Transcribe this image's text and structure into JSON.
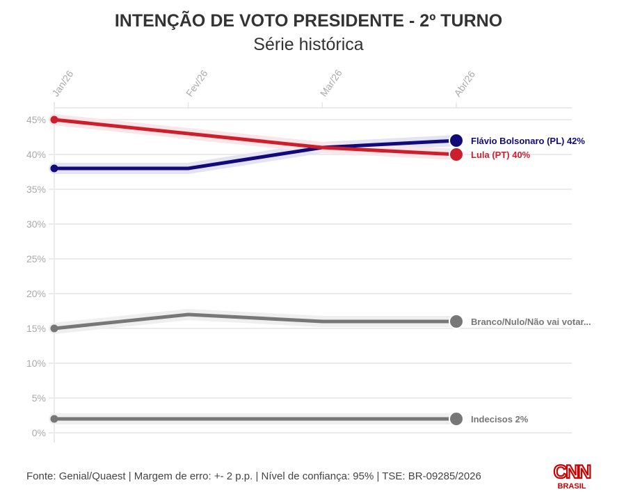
{
  "header": {
    "title": "INTENÇÃO DE VOTO PRESIDENTE - 2º TURNO",
    "subtitle": "Série histórica"
  },
  "footer": {
    "source": "Fonte: Genial/Quaest | Margem de erro: +- 2 p.p. | Nível de confiança: 95% | TSE: BR-09285/2026"
  },
  "logo": {
    "brand": "CNN",
    "sub": "BRASIL",
    "color": "#cc0000"
  },
  "chart_data": {
    "type": "line",
    "title": "INTENÇÃO DE VOTO PRESIDENTE - 2º TURNO",
    "subtitle": "Série histórica",
    "xlabel": "",
    "ylabel": "",
    "categories": [
      "Jan/26",
      "Fev/26",
      "Mar/26",
      "Abr/26"
    ],
    "ylim": [
      0,
      45
    ],
    "yticks": [
      0,
      5,
      10,
      15,
      20,
      25,
      30,
      35,
      40,
      45
    ],
    "ytick_labels": [
      "0%",
      "5%",
      "10%",
      "15%",
      "20%",
      "25%",
      "30%",
      "35%",
      "40%",
      "45%"
    ],
    "grid": true,
    "legend": "direct-labels-right",
    "series": [
      {
        "name": "Flávio Bolsonaro (PL)",
        "label": "Flávio Bolsonaro (PL) 42%",
        "values": [
          38,
          38,
          41,
          42
        ],
        "color": "#130a7a",
        "band": "#e4e3f3"
      },
      {
        "name": "Lula (PT)",
        "label": "Lula (PT) 40%",
        "values": [
          45,
          43,
          41,
          40
        ],
        "color": "#cc1f2e",
        "band": "#fae6e8"
      },
      {
        "name": "Branco/Nulo/Não vai votar",
        "label": "Branco/Nulo/Não vai votar...",
        "values": [
          15,
          17,
          16,
          16
        ],
        "color": "#777777",
        "band": "#efefef"
      },
      {
        "name": "Indecisos",
        "label": "Indecisos 2%",
        "values": [
          2,
          2,
          2,
          2
        ],
        "color": "#777777",
        "band": "#efefef"
      }
    ]
  }
}
